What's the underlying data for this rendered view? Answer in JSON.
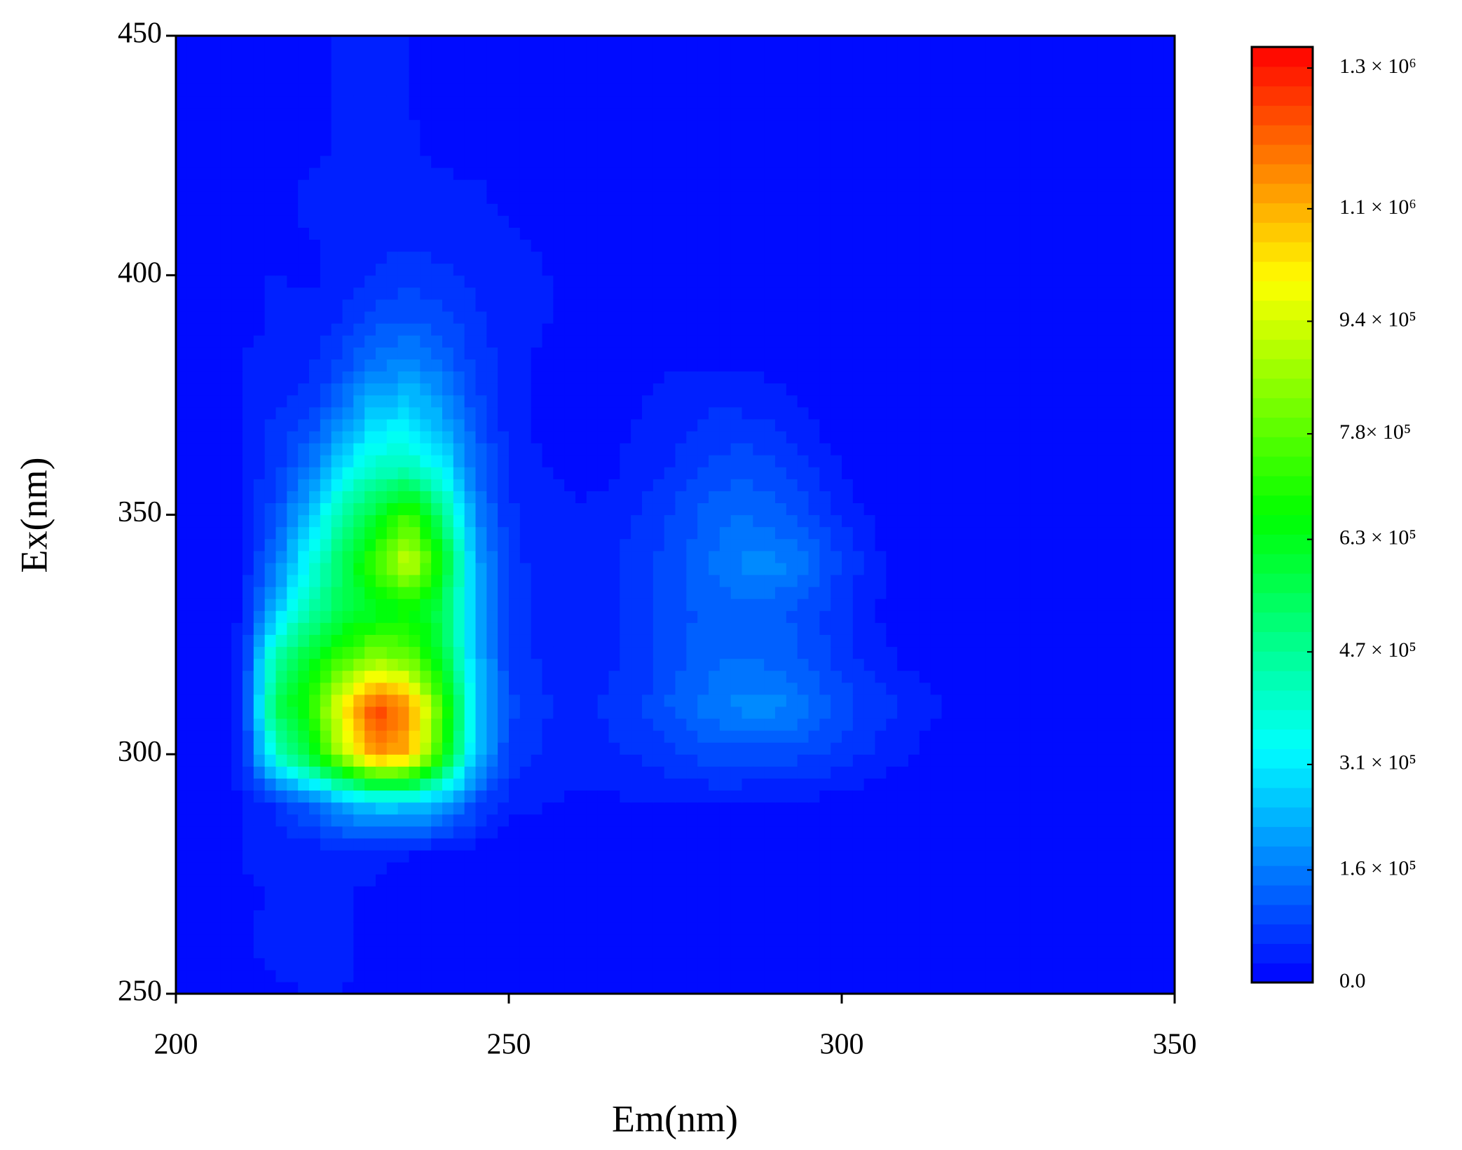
{
  "chart_data": {
    "type": "contour",
    "xlabel": "Em(nm)",
    "ylabel": "Ex(nm)",
    "xlim": [
      200,
      350
    ],
    "ylim": [
      250,
      450
    ],
    "xticks": [
      200,
      250,
      300,
      350
    ],
    "yticks": [
      250,
      300,
      350,
      400,
      450
    ],
    "x": [
      200,
      205,
      210,
      215,
      220,
      225,
      230,
      235,
      240,
      245,
      250,
      255,
      260,
      265,
      270,
      275,
      280,
      285,
      290,
      295,
      300,
      305,
      310,
      315,
      320,
      325,
      330,
      335,
      340,
      345,
      350
    ],
    "y": [
      250,
      260,
      270,
      280,
      290,
      300,
      310,
      320,
      330,
      340,
      350,
      360,
      370,
      380,
      390,
      400,
      410,
      420,
      430,
      440,
      450
    ],
    "z": [
      [
        0,
        0,
        0,
        20000,
        30000,
        30000,
        0,
        0,
        0,
        0,
        0,
        0,
        0,
        0,
        0,
        0,
        0,
        0,
        0,
        0,
        0,
        0,
        0,
        0,
        0,
        0,
        0,
        0,
        0,
        0,
        0
      ],
      [
        0,
        30000,
        20000,
        50000,
        30000,
        40000,
        0,
        0,
        0,
        0,
        0,
        0,
        0,
        0,
        0,
        0,
        0,
        0,
        0,
        0,
        0,
        0,
        0,
        0,
        0,
        0,
        0,
        0,
        0,
        0,
        0
      ],
      [
        0,
        0,
        20000,
        30000,
        40000,
        30000,
        20000,
        0,
        0,
        0,
        0,
        0,
        0,
        0,
        0,
        0,
        0,
        0,
        0,
        0,
        0,
        0,
        0,
        0,
        0,
        0,
        0,
        0,
        0,
        0,
        0
      ],
      [
        0,
        0,
        30000,
        40000,
        40000,
        50000,
        40000,
        30000,
        30000,
        20000,
        0,
        0,
        0,
        0,
        0,
        0,
        0,
        0,
        0,
        0,
        0,
        0,
        0,
        0,
        0,
        0,
        0,
        0,
        0,
        0,
        0
      ],
      [
        0,
        0,
        30000,
        60000,
        120000,
        220000,
        280000,
        280000,
        220000,
        100000,
        40000,
        30000,
        20000,
        20000,
        30000,
        30000,
        30000,
        30000,
        20000,
        20000,
        20000,
        0,
        0,
        0,
        0,
        0,
        0,
        0,
        0,
        0,
        0
      ],
      [
        0,
        0,
        40000,
        400000,
        600000,
        900000,
        1150000,
        1100000,
        700000,
        250000,
        80000,
        50000,
        50000,
        50000,
        60000,
        80000,
        100000,
        100000,
        100000,
        90000,
        70000,
        50000,
        30000,
        0,
        0,
        0,
        0,
        0,
        0,
        0,
        0
      ],
      [
        0,
        0,
        40000,
        550000,
        700000,
        1000000,
        1250000,
        1150000,
        750000,
        280000,
        90000,
        60000,
        50000,
        60000,
        80000,
        120000,
        150000,
        180000,
        180000,
        150000,
        100000,
        70000,
        50000,
        30000,
        20000,
        0,
        0,
        0,
        0,
        0,
        0
      ],
      [
        0,
        0,
        40000,
        450000,
        600000,
        750000,
        850000,
        800000,
        600000,
        250000,
        80000,
        50000,
        50000,
        50000,
        70000,
        100000,
        130000,
        140000,
        130000,
        100000,
        70000,
        40000,
        20000,
        0,
        0,
        0,
        0,
        0,
        0,
        0,
        0
      ],
      [
        0,
        0,
        30000,
        250000,
        450000,
        550000,
        620000,
        650000,
        550000,
        220000,
        80000,
        50000,
        50000,
        50000,
        70000,
        100000,
        120000,
        130000,
        120000,
        100000,
        60000,
        30000,
        0,
        0,
        0,
        0,
        0,
        0,
        0,
        0,
        0
      ],
      [
        0,
        0,
        30000,
        150000,
        350000,
        550000,
        750000,
        950000,
        650000,
        220000,
        70000,
        40000,
        50000,
        50000,
        70000,
        100000,
        140000,
        170000,
        180000,
        140000,
        80000,
        40000,
        0,
        0,
        0,
        0,
        0,
        0,
        0,
        0,
        0
      ],
      [
        0,
        0,
        30000,
        100000,
        250000,
        450000,
        600000,
        750000,
        500000,
        180000,
        60000,
        40000,
        30000,
        40000,
        60000,
        90000,
        120000,
        140000,
        120000,
        90000,
        50000,
        20000,
        0,
        0,
        0,
        0,
        0,
        0,
        0,
        0,
        0
      ],
      [
        0,
        0,
        30000,
        70000,
        150000,
        300000,
        400000,
        420000,
        320000,
        140000,
        50000,
        30000,
        20000,
        20000,
        40000,
        60000,
        90000,
        100000,
        90000,
        60000,
        30000,
        0,
        0,
        0,
        0,
        0,
        0,
        0,
        0,
        0,
        0
      ],
      [
        0,
        0,
        30000,
        60000,
        80000,
        180000,
        280000,
        300000,
        220000,
        100000,
        40000,
        20000,
        10000,
        20000,
        30000,
        40000,
        60000,
        60000,
        50000,
        30000,
        0,
        0,
        0,
        0,
        0,
        0,
        0,
        0,
        0,
        0,
        0
      ],
      [
        0,
        0,
        30000,
        40000,
        50000,
        100000,
        170000,
        190000,
        150000,
        80000,
        40000,
        20000,
        10000,
        20000,
        20000,
        30000,
        30000,
        30000,
        20000,
        0,
        0,
        0,
        0,
        0,
        0,
        0,
        0,
        0,
        0,
        0,
        0
      ],
      [
        0,
        0,
        20000,
        30000,
        40000,
        60000,
        100000,
        120000,
        100000,
        60000,
        40000,
        30000,
        20000,
        0,
        0,
        0,
        0,
        0,
        0,
        0,
        0,
        0,
        0,
        0,
        0,
        0,
        0,
        0,
        0,
        0,
        0
      ],
      [
        0,
        0,
        20000,
        30000,
        20000,
        40000,
        60000,
        70000,
        60000,
        50000,
        40000,
        30000,
        20000,
        0,
        0,
        0,
        0,
        0,
        0,
        0,
        0,
        0,
        0,
        0,
        0,
        0,
        0,
        0,
        0,
        0,
        0
      ],
      [
        0,
        0,
        0,
        20000,
        30000,
        30000,
        40000,
        40000,
        40000,
        30000,
        30000,
        20000,
        0,
        0,
        0,
        0,
        0,
        0,
        0,
        0,
        0,
        0,
        0,
        0,
        0,
        0,
        0,
        0,
        0,
        0,
        0
      ],
      [
        0,
        0,
        0,
        20000,
        30000,
        30000,
        30000,
        30000,
        30000,
        30000,
        20000,
        0,
        0,
        0,
        0,
        0,
        0,
        0,
        0,
        0,
        0,
        0,
        0,
        0,
        0,
        0,
        0,
        0,
        0,
        0,
        0
      ],
      [
        0,
        0,
        0,
        20000,
        20000,
        30000,
        30000,
        30000,
        20000,
        0,
        0,
        0,
        0,
        0,
        0,
        0,
        0,
        0,
        0,
        0,
        0,
        0,
        0,
        0,
        0,
        0,
        0,
        0,
        0,
        0,
        0
      ],
      [
        0,
        0,
        0,
        20000,
        20000,
        30000,
        30000,
        30000,
        0,
        0,
        0,
        0,
        0,
        0,
        0,
        0,
        0,
        0,
        0,
        0,
        0,
        0,
        0,
        0,
        0,
        0,
        0,
        0,
        0,
        0,
        0
      ],
      [
        0,
        0,
        0,
        0,
        20000,
        30000,
        30000,
        30000,
        0,
        0,
        0,
        0,
        0,
        0,
        0,
        0,
        0,
        0,
        0,
        0,
        0,
        0,
        0,
        0,
        0,
        0,
        0,
        0,
        0,
        0,
        0
      ]
    ],
    "colorbar": {
      "zlim": [
        0,
        1330000
      ],
      "colormap": [
        "#0000ff",
        "#00ffff",
        "#00ff00",
        "#ffff00",
        "#ff0000"
      ],
      "ticks": [
        {
          "value": 0,
          "label": "0.0"
        },
        {
          "value": 160000,
          "label": "1.6 × 10⁵"
        },
        {
          "value": 310000,
          "label": "3.1 × 10⁵"
        },
        {
          "value": 470000,
          "label": "4.7 × 10⁵"
        },
        {
          "value": 630000,
          "label": "6.3 × 10⁵"
        },
        {
          "value": 780000,
          "label": "7.8× 10⁵"
        },
        {
          "value": 940000,
          "label": "9.4 × 10⁵"
        },
        {
          "value": 1100000,
          "label": "1.1 × 10⁶"
        },
        {
          "value": 1300000,
          "label": "1.3 × 10⁶"
        }
      ]
    }
  }
}
